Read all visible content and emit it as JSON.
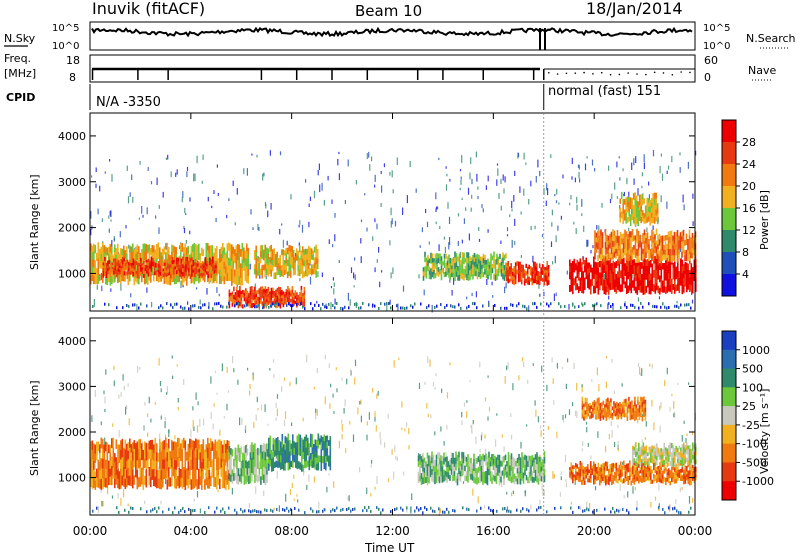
{
  "header": {
    "station": "Inuvik (fitACF)",
    "beam": "Beam 10",
    "date": "18/Jan/2014"
  },
  "noise_panel": {
    "left_label": "N.Sky",
    "right_label": "N.Search",
    "ticks": [
      "10^5",
      "10^0"
    ],
    "right_ticks": [
      "10^5",
      "10^0"
    ]
  },
  "freq_panel": {
    "left_label_1": "Freq.",
    "left_label_2": "[MHz]",
    "left_ticks": [
      "18",
      "8"
    ],
    "right_ticks": [
      "60",
      "0"
    ],
    "right_label": "Nave"
  },
  "cpid_panel": {
    "label": "CPID",
    "mode_1": "N/A -3350",
    "mode_2": "normal (fast) 151",
    "switch_time_hours": 18.0
  },
  "power_panel": {
    "ylabel": "Slant Range [km]",
    "yticks": [
      "1000",
      "2000",
      "3000",
      "4000"
    ],
    "colorbar_label": "Power [dB]",
    "colorbar_ticks": [
      "4",
      "8",
      "12",
      "16",
      "20",
      "24",
      "28"
    ],
    "colors": [
      "#1010e0",
      "#1f4fb8",
      "#2e8a6a",
      "#6cc83a",
      "#f0b020",
      "#f07a10",
      "#e83a10",
      "#ee0000"
    ]
  },
  "velocity_panel": {
    "ylabel": "Slant Range [km]",
    "yticks": [
      "1000",
      "2000",
      "3000",
      "4000"
    ],
    "colorbar_label": "Velocity [m s⁻¹]",
    "colorbar_ticks": [
      "1000",
      "500",
      "100",
      "25",
      "-25",
      "-100",
      "-500",
      "-1000"
    ],
    "colors": [
      "#1a3fc0",
      "#2b6fb0",
      "#2e8a6a",
      "#6cc83a",
      "#c8c8be",
      "#f0b020",
      "#f07a10",
      "#e83a10",
      "#ee0000"
    ]
  },
  "x_axis": {
    "ticks": [
      "00:00",
      "04:00",
      "08:00",
      "12:00",
      "16:00",
      "20:00",
      "00:00"
    ],
    "label": "Time UT"
  },
  "chart_data": {
    "type": "heatmap",
    "x_range_hours": [
      0,
      24
    ],
    "y_range_km": [
      180,
      4500
    ],
    "power_regions": [
      {
        "t0": 0.0,
        "t1": 6.3,
        "r0": 800,
        "r1": 1600,
        "level": 4
      },
      {
        "t0": 0.5,
        "t1": 5.0,
        "r0": 950,
        "r1": 1300,
        "level": 6
      },
      {
        "t0": 6.5,
        "t1": 9.0,
        "r0": 950,
        "r1": 1550,
        "level": 4
      },
      {
        "t0": 5.5,
        "t1": 8.5,
        "r0": 300,
        "r1": 650,
        "level": 6
      },
      {
        "t0": 13.2,
        "t1": 16.5,
        "r0": 900,
        "r1": 1400,
        "level": 3
      },
      {
        "t0": 16.5,
        "t1": 18.2,
        "r0": 800,
        "r1": 1200,
        "level": 6
      },
      {
        "t0": 19.0,
        "t1": 24.0,
        "r0": 600,
        "r1": 1300,
        "level": 7
      },
      {
        "t0": 20.0,
        "t1": 24.0,
        "r0": 1300,
        "r1": 1900,
        "level": 5
      },
      {
        "t0": 21.0,
        "t1": 22.5,
        "r0": 2100,
        "r1": 2700,
        "level": 4
      }
    ],
    "velocity_regions": [
      {
        "t0": 0.0,
        "t1": 5.5,
        "r0": 800,
        "r1": 1800,
        "level": 6
      },
      {
        "t0": 5.5,
        "t1": 7.0,
        "r0": 900,
        "r1": 1700,
        "level": 3
      },
      {
        "t0": 7.0,
        "t1": 9.5,
        "r0": 1200,
        "r1": 1900,
        "level": 2
      },
      {
        "t0": 13.0,
        "t1": 18.0,
        "r0": 900,
        "r1": 1500,
        "level": 3
      },
      {
        "t0": 19.0,
        "t1": 24.0,
        "r0": 900,
        "r1": 1300,
        "level": 6
      },
      {
        "t0": 21.5,
        "t1": 24.0,
        "r0": 1300,
        "r1": 1700,
        "level": 4
      },
      {
        "t0": 19.5,
        "t1": 22.0,
        "r0": 2300,
        "r1": 2700,
        "level": 6
      }
    ]
  }
}
